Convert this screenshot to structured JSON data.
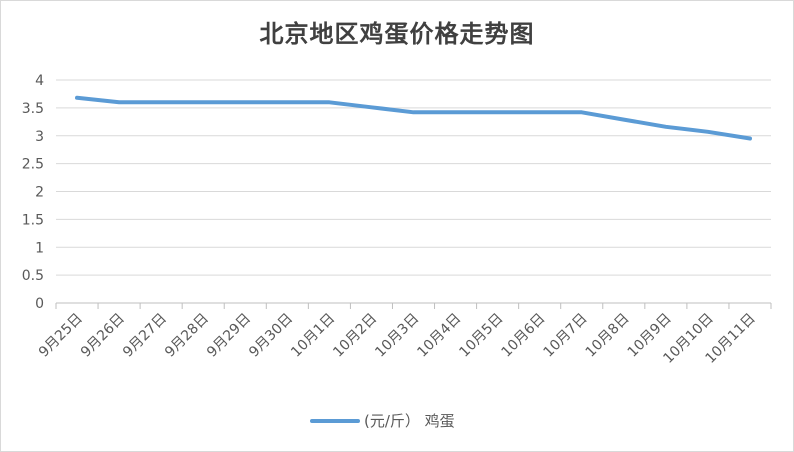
{
  "chart_data": {
    "type": "line",
    "title": "北京地区鸡蛋价格走势图",
    "xlabel": "",
    "ylabel": "",
    "categories": [
      "9月25日",
      "9月26日",
      "9月27日",
      "9月28日",
      "9月29日",
      "9月30日",
      "10月1日",
      "10月2日",
      "10月3日",
      "10月4日",
      "10月5日",
      "10月6日",
      "10月7日",
      "10月8日",
      "10月9日",
      "10月10日",
      "10月11日"
    ],
    "series": [
      {
        "name": "(元/斤） 鸡蛋",
        "values": [
          3.68,
          3.6,
          3.6,
          3.6,
          3.6,
          3.6,
          3.6,
          3.51,
          3.42,
          3.42,
          3.42,
          3.42,
          3.42,
          3.29,
          3.16,
          3.07,
          2.95
        ],
        "color": "#5b9bd5"
      }
    ],
    "yticks": [
      "0",
      "0.5",
      "1",
      "1.5",
      "2",
      "2.5",
      "3",
      "3.5",
      "4"
    ],
    "ylim": [
      0,
      4
    ],
    "grid": true,
    "legend_position": "bottom"
  }
}
